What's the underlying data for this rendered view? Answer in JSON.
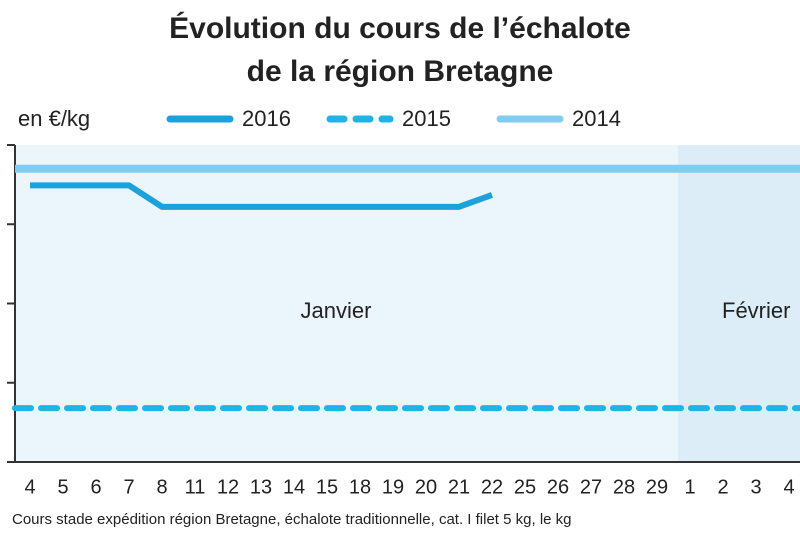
{
  "chart_data": {
    "type": "line",
    "title": [
      "Évolution du cours de l’échalote",
      "de la région Bretagne"
    ],
    "y_label": "en €/kg",
    "categories": [
      "4",
      "5",
      "6",
      "7",
      "8",
      "11",
      "12",
      "13",
      "14",
      "15",
      "18",
      "19",
      "20",
      "21",
      "22",
      "25",
      "26",
      "27",
      "28",
      "29",
      "1",
      "2",
      "3",
      "4"
    ],
    "months": [
      "Janvier",
      "Février"
    ],
    "ylim": [
      0,
      4
    ],
    "yticks": [
      0,
      1,
      2,
      3,
      4
    ],
    "series": [
      {
        "name": "2016",
        "color": "#1ba2dc",
        "dashed": false,
        "values": [
          3.49,
          3.49,
          3.49,
          3.49,
          3.22,
          3.22,
          3.22,
          3.22,
          3.22,
          3.22,
          3.22,
          3.22,
          3.22,
          3.22,
          3.37,
          null,
          null,
          null,
          null,
          null,
          null,
          null,
          null,
          null
        ]
      },
      {
        "name": "2015",
        "color": "#1fb3e6",
        "dashed": true,
        "values": [
          0.68,
          0.68,
          0.68,
          0.68,
          0.68,
          0.68,
          0.68,
          0.68,
          0.68,
          0.68,
          0.68,
          0.68,
          0.68,
          0.68,
          0.68,
          0.68,
          0.68,
          0.68,
          0.68,
          0.68,
          0.68,
          0.68,
          0.68,
          0.68
        ]
      },
      {
        "name": "2014",
        "color": "#80cdef",
        "dashed": false,
        "values": [
          3.7,
          3.7,
          3.7,
          3.7,
          3.7,
          3.7,
          3.7,
          3.7,
          3.7,
          3.7,
          3.7,
          3.7,
          3.7,
          3.7,
          3.7,
          3.7,
          3.7,
          3.7,
          3.7,
          3.7,
          3.7,
          3.7,
          3.7,
          3.7
        ]
      }
    ],
    "footnote": "Cours stade expédition région Bretagne, échalote traditionnelle, cat. I filet 5 kg, le kg"
  }
}
